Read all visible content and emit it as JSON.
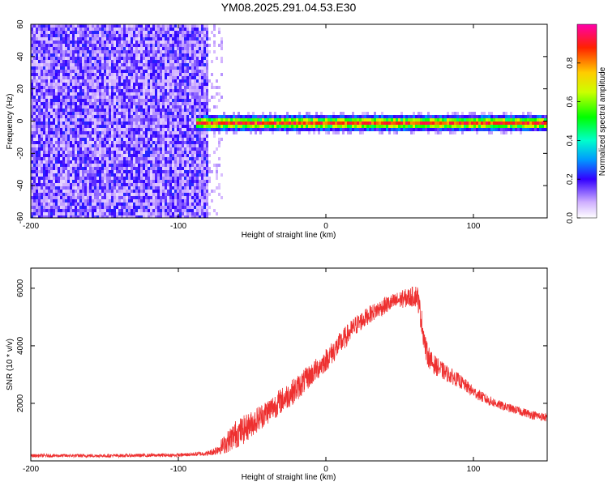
{
  "title": "YM08.2025.291.04.53.E30",
  "chart_data": [
    {
      "type": "heatmap",
      "name": "spectrogram",
      "xlabel": "Height of straight line (km)",
      "ylabel": "Frequency (Hz)",
      "xlim": [
        -200,
        150
      ],
      "ylim": [
        -60,
        60
      ],
      "xticks": [
        -200,
        -100,
        0,
        100
      ],
      "yticks": [
        -60,
        -40,
        -20,
        0,
        20,
        40,
        60
      ],
      "xtick_labels": [
        "-200",
        "-100",
        "0",
        "100"
      ],
      "ytick_labels": [
        "-60",
        "-40",
        "-20",
        "0",
        "20",
        "40",
        "60"
      ],
      "description_regions": [
        {
          "x_range": [
            -200,
            -78
          ],
          "freq_range": [
            -60,
            60
          ],
          "amplitude": "low (0.1-0.3), noise"
        },
        {
          "x_range": [
            -88,
            150
          ],
          "freq_center": 0,
          "freq_halfwidth": 3,
          "amplitude": "high (0.6-1.0), narrow band"
        }
      ],
      "colorbar": {
        "label": "Normalized spectral amplitude",
        "range": [
          0.0,
          1.0
        ],
        "ticks": [
          0.0,
          0.2,
          0.4,
          0.6,
          0.8
        ],
        "tick_labels": [
          "0.0",
          "0.2",
          "0.4",
          "0.6",
          "0.8"
        ]
      }
    },
    {
      "type": "line",
      "name": "snr",
      "xlabel": "Height of straight line (km)",
      "ylabel": "SNR (10 * v/v)",
      "xlim": [
        -200,
        150
      ],
      "ylim": [
        0,
        6700
      ],
      "xticks": [
        -200,
        -100,
        0,
        100
      ],
      "yticks": [
        2000,
        4000,
        6000
      ],
      "xtick_labels": [
        "-200",
        "-100",
        "0",
        "100"
      ],
      "ytick_labels": [
        "2000",
        "4000",
        "6000"
      ],
      "color": "#ee3030",
      "envelope": {
        "x": [
          -200,
          -150,
          -100,
          -80,
          -75,
          -68,
          -62,
          -55,
          -50,
          -40,
          -30,
          -20,
          -10,
          0,
          10,
          20,
          30,
          40,
          50,
          58,
          62,
          65,
          68,
          72,
          80,
          90,
          100,
          110,
          120,
          130,
          140,
          150
        ],
        "mean": [
          180,
          180,
          200,
          260,
          350,
          600,
          900,
          1100,
          1300,
          1700,
          2100,
          2500,
          3000,
          3500,
          4100,
          4700,
          5100,
          5400,
          5600,
          5700,
          5750,
          4800,
          3800,
          3400,
          3100,
          2800,
          2400,
          2100,
          1900,
          1750,
          1600,
          1500
        ],
        "noise": [
          60,
          60,
          60,
          80,
          150,
          350,
          500,
          500,
          450,
          450,
          450,
          450,
          400,
          400,
          400,
          350,
          300,
          300,
          300,
          350,
          400,
          450,
          400,
          350,
          300,
          250,
          200,
          180,
          150,
          150,
          150,
          150
        ]
      }
    }
  ]
}
